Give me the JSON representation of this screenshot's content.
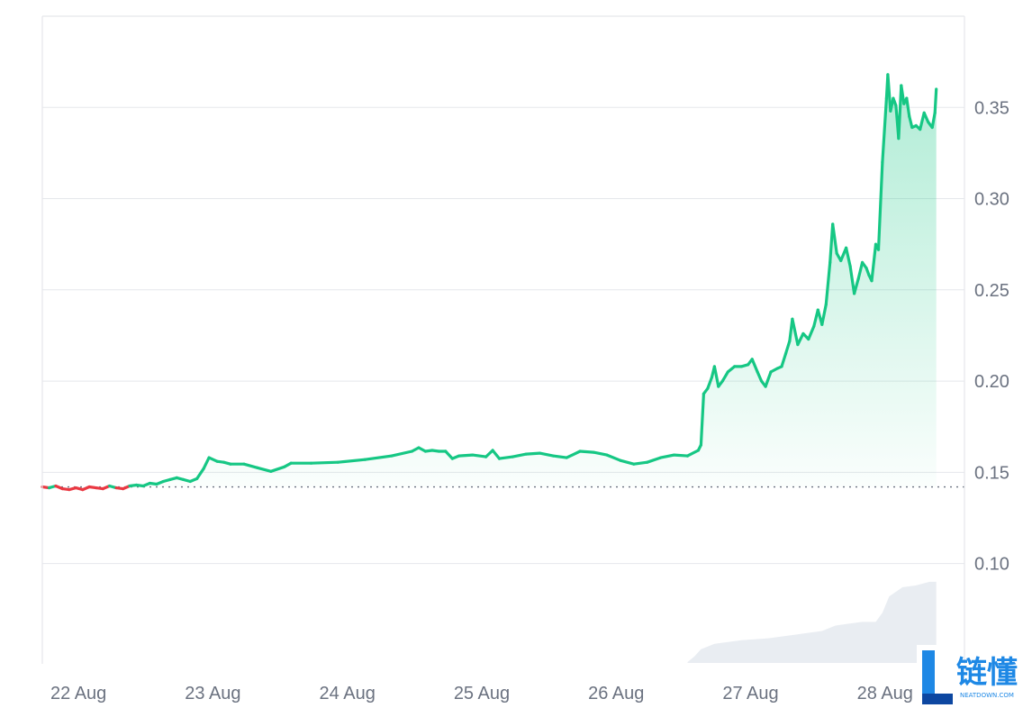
{
  "chart_data": {
    "type": "line",
    "title": "",
    "xlabel": "",
    "ylabel": "",
    "x_tick_labels": [
      "22 Aug",
      "23 Aug",
      "24 Aug",
      "25 Aug",
      "26 Aug",
      "27 Aug",
      "28 Aug"
    ],
    "y_tick_labels": [
      "0.10",
      "0.15",
      "0.20",
      "0.25",
      "0.30",
      "0.35"
    ],
    "y_ticks": [
      0.1,
      0.15,
      0.2,
      0.25,
      0.3,
      0.35
    ],
    "ylim": [
      0.045,
      0.4
    ],
    "xlim": [
      0,
      6.86
    ],
    "baseline": 0.142,
    "grid": true,
    "colors": {
      "up": "#16c784",
      "down": "#ea3943",
      "baseline": "#6b7280",
      "volume": "#e9edf2",
      "grid": "#e5e7eb"
    },
    "series": [
      {
        "points": [
          [
            0.0,
            0.142
          ],
          [
            0.05,
            0.1415
          ],
          [
            0.1,
            0.1425
          ],
          [
            0.15,
            0.141
          ],
          [
            0.2,
            0.1405
          ],
          [
            0.25,
            0.1415
          ],
          [
            0.3,
            0.1405
          ],
          [
            0.35,
            0.142
          ],
          [
            0.4,
            0.1415
          ],
          [
            0.45,
            0.141
          ],
          [
            0.5,
            0.1425
          ],
          [
            0.55,
            0.1415
          ],
          [
            0.6,
            0.141
          ],
          [
            0.65,
            0.1425
          ],
          [
            0.7,
            0.143
          ],
          [
            0.75,
            0.1425
          ],
          [
            0.8,
            0.144
          ],
          [
            0.85,
            0.1435
          ],
          [
            0.9,
            0.145
          ],
          [
            0.95,
            0.146
          ],
          [
            1.0,
            0.147
          ],
          [
            1.05,
            0.146
          ],
          [
            1.1,
            0.145
          ],
          [
            1.15,
            0.1465
          ],
          [
            1.2,
            0.152
          ],
          [
            1.24,
            0.158
          ],
          [
            1.3,
            0.156
          ],
          [
            1.35,
            0.1555
          ],
          [
            1.4,
            0.1545
          ],
          [
            1.5,
            0.1545
          ],
          [
            1.6,
            0.1525
          ],
          [
            1.7,
            0.1505
          ],
          [
            1.8,
            0.153
          ],
          [
            1.85,
            0.155
          ],
          [
            2.0,
            0.155
          ],
          [
            2.2,
            0.1555
          ],
          [
            2.4,
            0.157
          ],
          [
            2.6,
            0.159
          ],
          [
            2.75,
            0.1615
          ],
          [
            2.8,
            0.1635
          ],
          [
            2.85,
            0.1615
          ],
          [
            2.9,
            0.162
          ],
          [
            2.95,
            0.1615
          ],
          [
            3.0,
            0.1615
          ],
          [
            3.05,
            0.1575
          ],
          [
            3.1,
            0.159
          ],
          [
            3.2,
            0.1595
          ],
          [
            3.3,
            0.1585
          ],
          [
            3.35,
            0.162
          ],
          [
            3.4,
            0.1575
          ],
          [
            3.5,
            0.1585
          ],
          [
            3.6,
            0.16
          ],
          [
            3.7,
            0.1605
          ],
          [
            3.8,
            0.159
          ],
          [
            3.9,
            0.158
          ],
          [
            4.0,
            0.1615
          ],
          [
            4.1,
            0.161
          ],
          [
            4.2,
            0.1595
          ],
          [
            4.3,
            0.1565
          ],
          [
            4.4,
            0.1545
          ],
          [
            4.5,
            0.1555
          ],
          [
            4.6,
            0.158
          ],
          [
            4.7,
            0.1595
          ],
          [
            4.8,
            0.159
          ],
          [
            4.88,
            0.162
          ],
          [
            4.9,
            0.165
          ],
          [
            4.92,
            0.193
          ],
          [
            4.95,
            0.196
          ],
          [
            4.98,
            0.202
          ],
          [
            5.0,
            0.208
          ],
          [
            5.03,
            0.197
          ],
          [
            5.06,
            0.2
          ],
          [
            5.1,
            0.205
          ],
          [
            5.15,
            0.208
          ],
          [
            5.2,
            0.208
          ],
          [
            5.25,
            0.209
          ],
          [
            5.28,
            0.212
          ],
          [
            5.32,
            0.205
          ],
          [
            5.35,
            0.2
          ],
          [
            5.38,
            0.197
          ],
          [
            5.42,
            0.205
          ],
          [
            5.47,
            0.207
          ],
          [
            5.5,
            0.208
          ],
          [
            5.53,
            0.215
          ],
          [
            5.56,
            0.222
          ],
          [
            5.58,
            0.234
          ],
          [
            5.62,
            0.22
          ],
          [
            5.66,
            0.226
          ],
          [
            5.7,
            0.223
          ],
          [
            5.74,
            0.23
          ],
          [
            5.77,
            0.239
          ],
          [
            5.8,
            0.231
          ],
          [
            5.83,
            0.242
          ],
          [
            5.86,
            0.265
          ],
          [
            5.88,
            0.286
          ],
          [
            5.91,
            0.27
          ],
          [
            5.94,
            0.266
          ],
          [
            5.98,
            0.273
          ],
          [
            6.01,
            0.263
          ],
          [
            6.04,
            0.248
          ],
          [
            6.07,
            0.256
          ],
          [
            6.1,
            0.265
          ],
          [
            6.13,
            0.262
          ],
          [
            6.15,
            0.258
          ],
          [
            6.17,
            0.255
          ],
          [
            6.2,
            0.275
          ],
          [
            6.22,
            0.272
          ],
          [
            6.25,
            0.32
          ],
          [
            6.28,
            0.355
          ],
          [
            6.29,
            0.368
          ],
          [
            6.31,
            0.348
          ],
          [
            6.33,
            0.355
          ],
          [
            6.35,
            0.351
          ],
          [
            6.37,
            0.333
          ],
          [
            6.39,
            0.362
          ],
          [
            6.41,
            0.352
          ],
          [
            6.43,
            0.355
          ],
          [
            6.45,
            0.345
          ],
          [
            6.47,
            0.339
          ],
          [
            6.5,
            0.34
          ],
          [
            6.53,
            0.338
          ],
          [
            6.56,
            0.347
          ],
          [
            6.59,
            0.342
          ],
          [
            6.62,
            0.339
          ],
          [
            6.64,
            0.347
          ],
          [
            6.65,
            0.36
          ]
        ]
      }
    ],
    "volume": [
      [
        4.8,
        0.046
      ],
      [
        4.85,
        0.049
      ],
      [
        4.9,
        0.053
      ],
      [
        5.0,
        0.056
      ],
      [
        5.2,
        0.058
      ],
      [
        5.4,
        0.059
      ],
      [
        5.6,
        0.061
      ],
      [
        5.8,
        0.063
      ],
      [
        5.9,
        0.066
      ],
      [
        6.0,
        0.067
      ],
      [
        6.1,
        0.068
      ],
      [
        6.2,
        0.068
      ],
      [
        6.25,
        0.073
      ],
      [
        6.3,
        0.082
      ],
      [
        6.4,
        0.087
      ],
      [
        6.5,
        0.088
      ],
      [
        6.6,
        0.09
      ],
      [
        6.65,
        0.09
      ]
    ]
  },
  "watermark": {
    "text": "链懂",
    "subtext": "NEATDOWN.COM"
  }
}
